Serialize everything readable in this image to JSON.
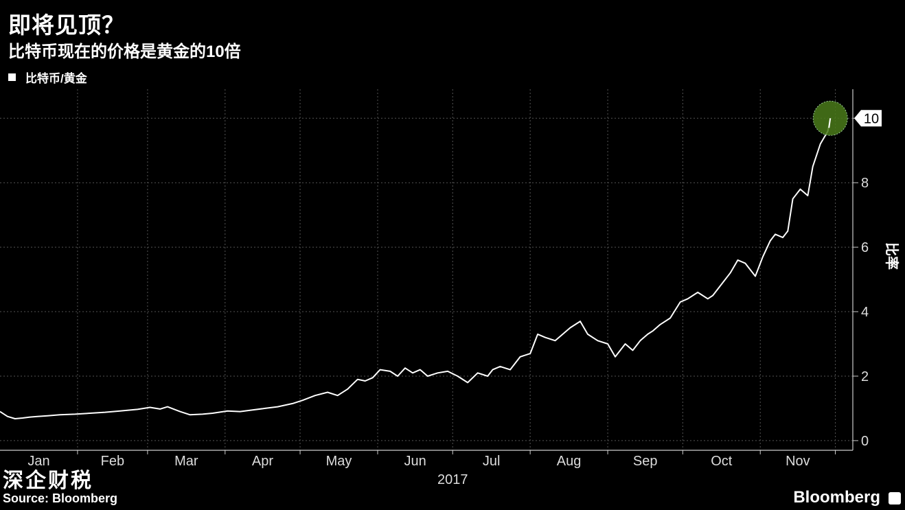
{
  "header": {
    "title": "即将见顶？",
    "subtitle": "比特币现在的价格是黄金的10倍"
  },
  "legend": {
    "label": "比特币/黄金"
  },
  "footer": {
    "source": "Source: Bloomberg",
    "watermark": "深企财税",
    "brand": "Bloomberg"
  },
  "colors": {
    "line": "#ffffff",
    "highlight": "#4a7a1a",
    "grid": "#555555",
    "background": "#000000"
  },
  "chart_data": {
    "type": "line",
    "title": "即将见顶？",
    "subtitle": "比特币现在的价格是黄金的10倍",
    "ylabel": "比率",
    "xlabel": "2017",
    "ylim": [
      -0.3,
      10.9
    ],
    "yticks": [
      "0",
      "2",
      "4",
      "6",
      "8",
      "10"
    ],
    "x_tick_labels": [
      "Jan",
      "Feb",
      "Mar",
      "Apr",
      "May",
      "Jun",
      "Jul",
      "Aug",
      "Sep",
      "Oct",
      "Nov"
    ],
    "grid": true,
    "legend_placement": "top-left",
    "current_value_label": "10",
    "series": [
      {
        "name": "比特币/黄金",
        "x": [
          "2017-01-01",
          "2017-01-04",
          "2017-01-07",
          "2017-01-10",
          "2017-01-13",
          "2017-01-16",
          "2017-01-20",
          "2017-01-25",
          "2017-01-31",
          "2017-02-06",
          "2017-02-12",
          "2017-02-18",
          "2017-02-25",
          "2017-03-02",
          "2017-03-06",
          "2017-03-09",
          "2017-03-14",
          "2017-03-18",
          "2017-03-23",
          "2017-03-27",
          "2017-04-02",
          "2017-04-07",
          "2017-04-12",
          "2017-04-17",
          "2017-04-22",
          "2017-04-28",
          "2017-05-02",
          "2017-05-07",
          "2017-05-12",
          "2017-05-16",
          "2017-05-20",
          "2017-05-24",
          "2017-05-27",
          "2017-05-30",
          "2017-06-02",
          "2017-06-06",
          "2017-06-09",
          "2017-06-12",
          "2017-06-15",
          "2017-06-18",
          "2017-06-21",
          "2017-06-25",
          "2017-06-29",
          "2017-07-03",
          "2017-07-07",
          "2017-07-11",
          "2017-07-15",
          "2017-07-17",
          "2017-07-20",
          "2017-07-24",
          "2017-07-28",
          "2017-08-01",
          "2017-08-04",
          "2017-08-07",
          "2017-08-11",
          "2017-08-14",
          "2017-08-17",
          "2017-08-21",
          "2017-08-24",
          "2017-08-28",
          "2017-09-01",
          "2017-09-04",
          "2017-09-08",
          "2017-09-11",
          "2017-09-14",
          "2017-09-17",
          "2017-09-19",
          "2017-09-22",
          "2017-09-26",
          "2017-09-30",
          "2017-10-03",
          "2017-10-07",
          "2017-10-11",
          "2017-10-13",
          "2017-10-17",
          "2017-10-20",
          "2017-10-23",
          "2017-10-26",
          "2017-10-30",
          "2017-11-02",
          "2017-11-05",
          "2017-11-07",
          "2017-11-10",
          "2017-11-12",
          "2017-11-14",
          "2017-11-17",
          "2017-11-20",
          "2017-11-22",
          "2017-11-25",
          "2017-11-28",
          "2017-11-29"
        ],
        "values": [
          0.9,
          0.75,
          0.68,
          0.7,
          0.73,
          0.75,
          0.77,
          0.8,
          0.82,
          0.85,
          0.88,
          0.92,
          0.97,
          1.03,
          0.98,
          1.05,
          0.9,
          0.8,
          0.82,
          0.85,
          0.92,
          0.9,
          0.95,
          1.0,
          1.05,
          1.15,
          1.25,
          1.4,
          1.5,
          1.4,
          1.6,
          1.9,
          1.85,
          1.95,
          2.2,
          2.15,
          2.0,
          2.25,
          2.1,
          2.2,
          2.0,
          2.1,
          2.15,
          2.0,
          1.8,
          2.1,
          2.0,
          2.2,
          2.3,
          2.2,
          2.6,
          2.7,
          3.3,
          3.2,
          3.1,
          3.3,
          3.5,
          3.7,
          3.3,
          3.1,
          3.0,
          2.6,
          3.0,
          2.8,
          3.1,
          3.3,
          3.4,
          3.6,
          3.8,
          4.3,
          4.4,
          4.6,
          4.4,
          4.5,
          4.9,
          5.2,
          5.6,
          5.5,
          5.1,
          5.7,
          6.2,
          6.4,
          6.3,
          6.5,
          7.5,
          7.8,
          7.6,
          8.5,
          9.2,
          9.6,
          10.0
        ]
      }
    ]
  }
}
